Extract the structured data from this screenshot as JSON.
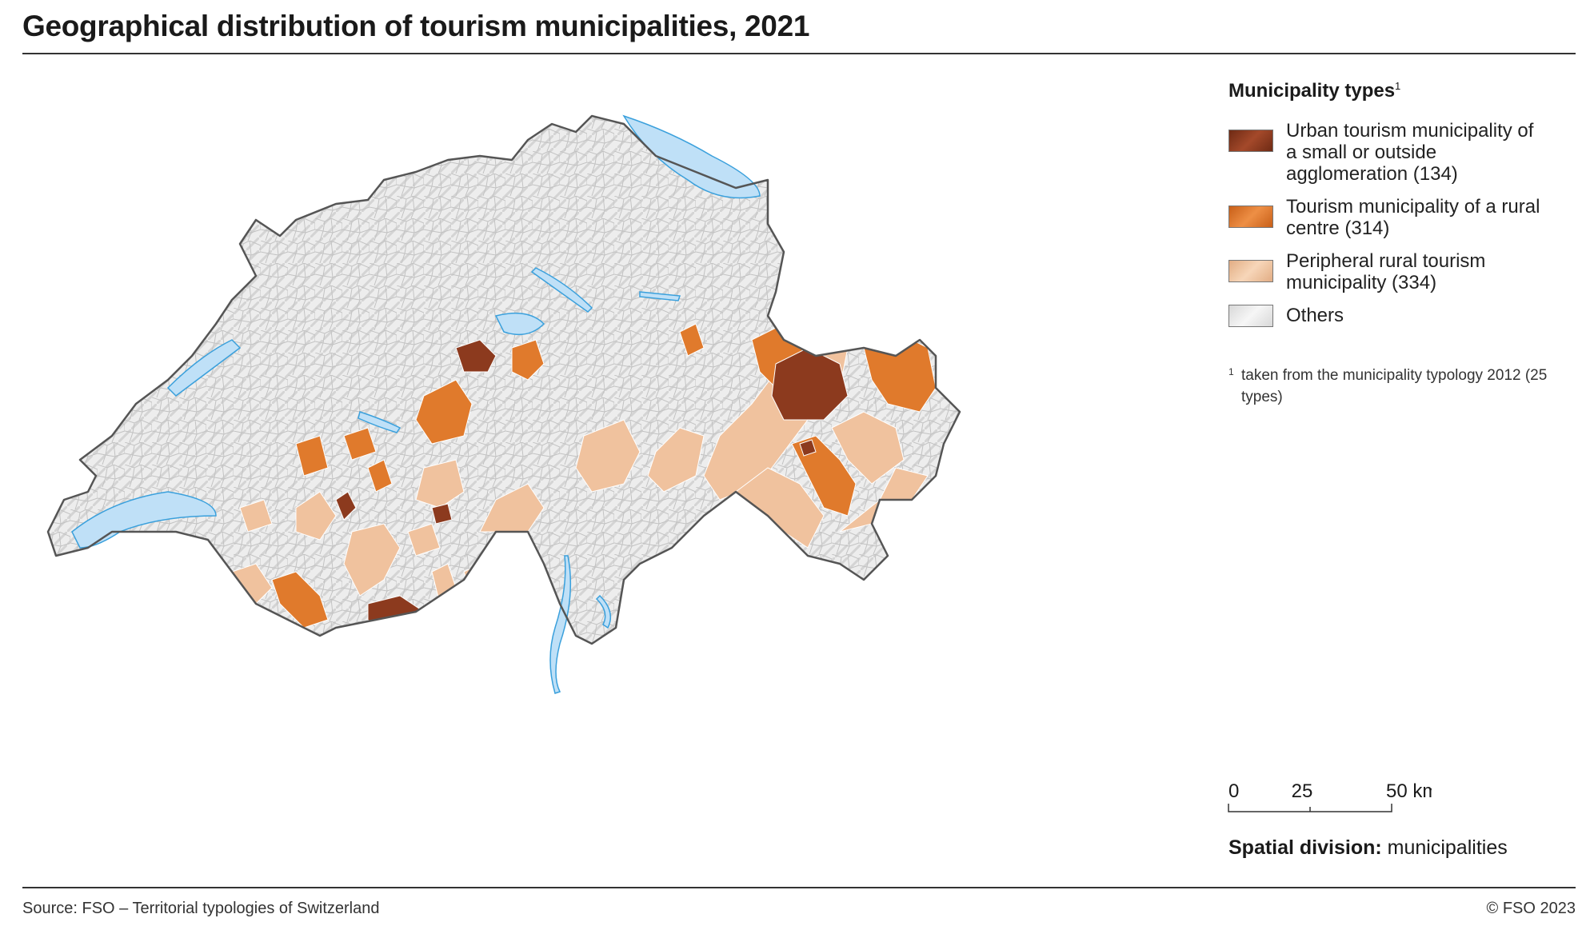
{
  "title": "Geographical distribution of tourism municipalities, 2021",
  "legend": {
    "title": "Municipality types",
    "title_footnote_mark": "1",
    "items": [
      {
        "label": "Urban tourism municipality of a small or outside agglomeration (134)",
        "color": "#8c3a1e"
      },
      {
        "label": "Tourism municipality of a rural centre (314)",
        "color": "#e07a2c"
      },
      {
        "label": "Peripheral rural tourism municipality (334)",
        "color": "#f0c29e"
      },
      {
        "label": "Others",
        "color": "#eeeeee"
      }
    ],
    "footnote_mark": "1",
    "footnote": "taken from the municipality typology 2012 (25 types)"
  },
  "colors": {
    "lake": "#bfe0f7",
    "lake_outline": "#3aa0dc",
    "border": "#555555",
    "municipality_line": "#bdbdbd"
  },
  "scale_bar": {
    "labels": [
      "0",
      "25",
      "50 km"
    ]
  },
  "spatial_division": {
    "label": "Spatial division:",
    "value": "municipalities"
  },
  "source": "Source: FSO – Territorial typologies of Switzerland",
  "copyright": "© FSO 2023"
}
